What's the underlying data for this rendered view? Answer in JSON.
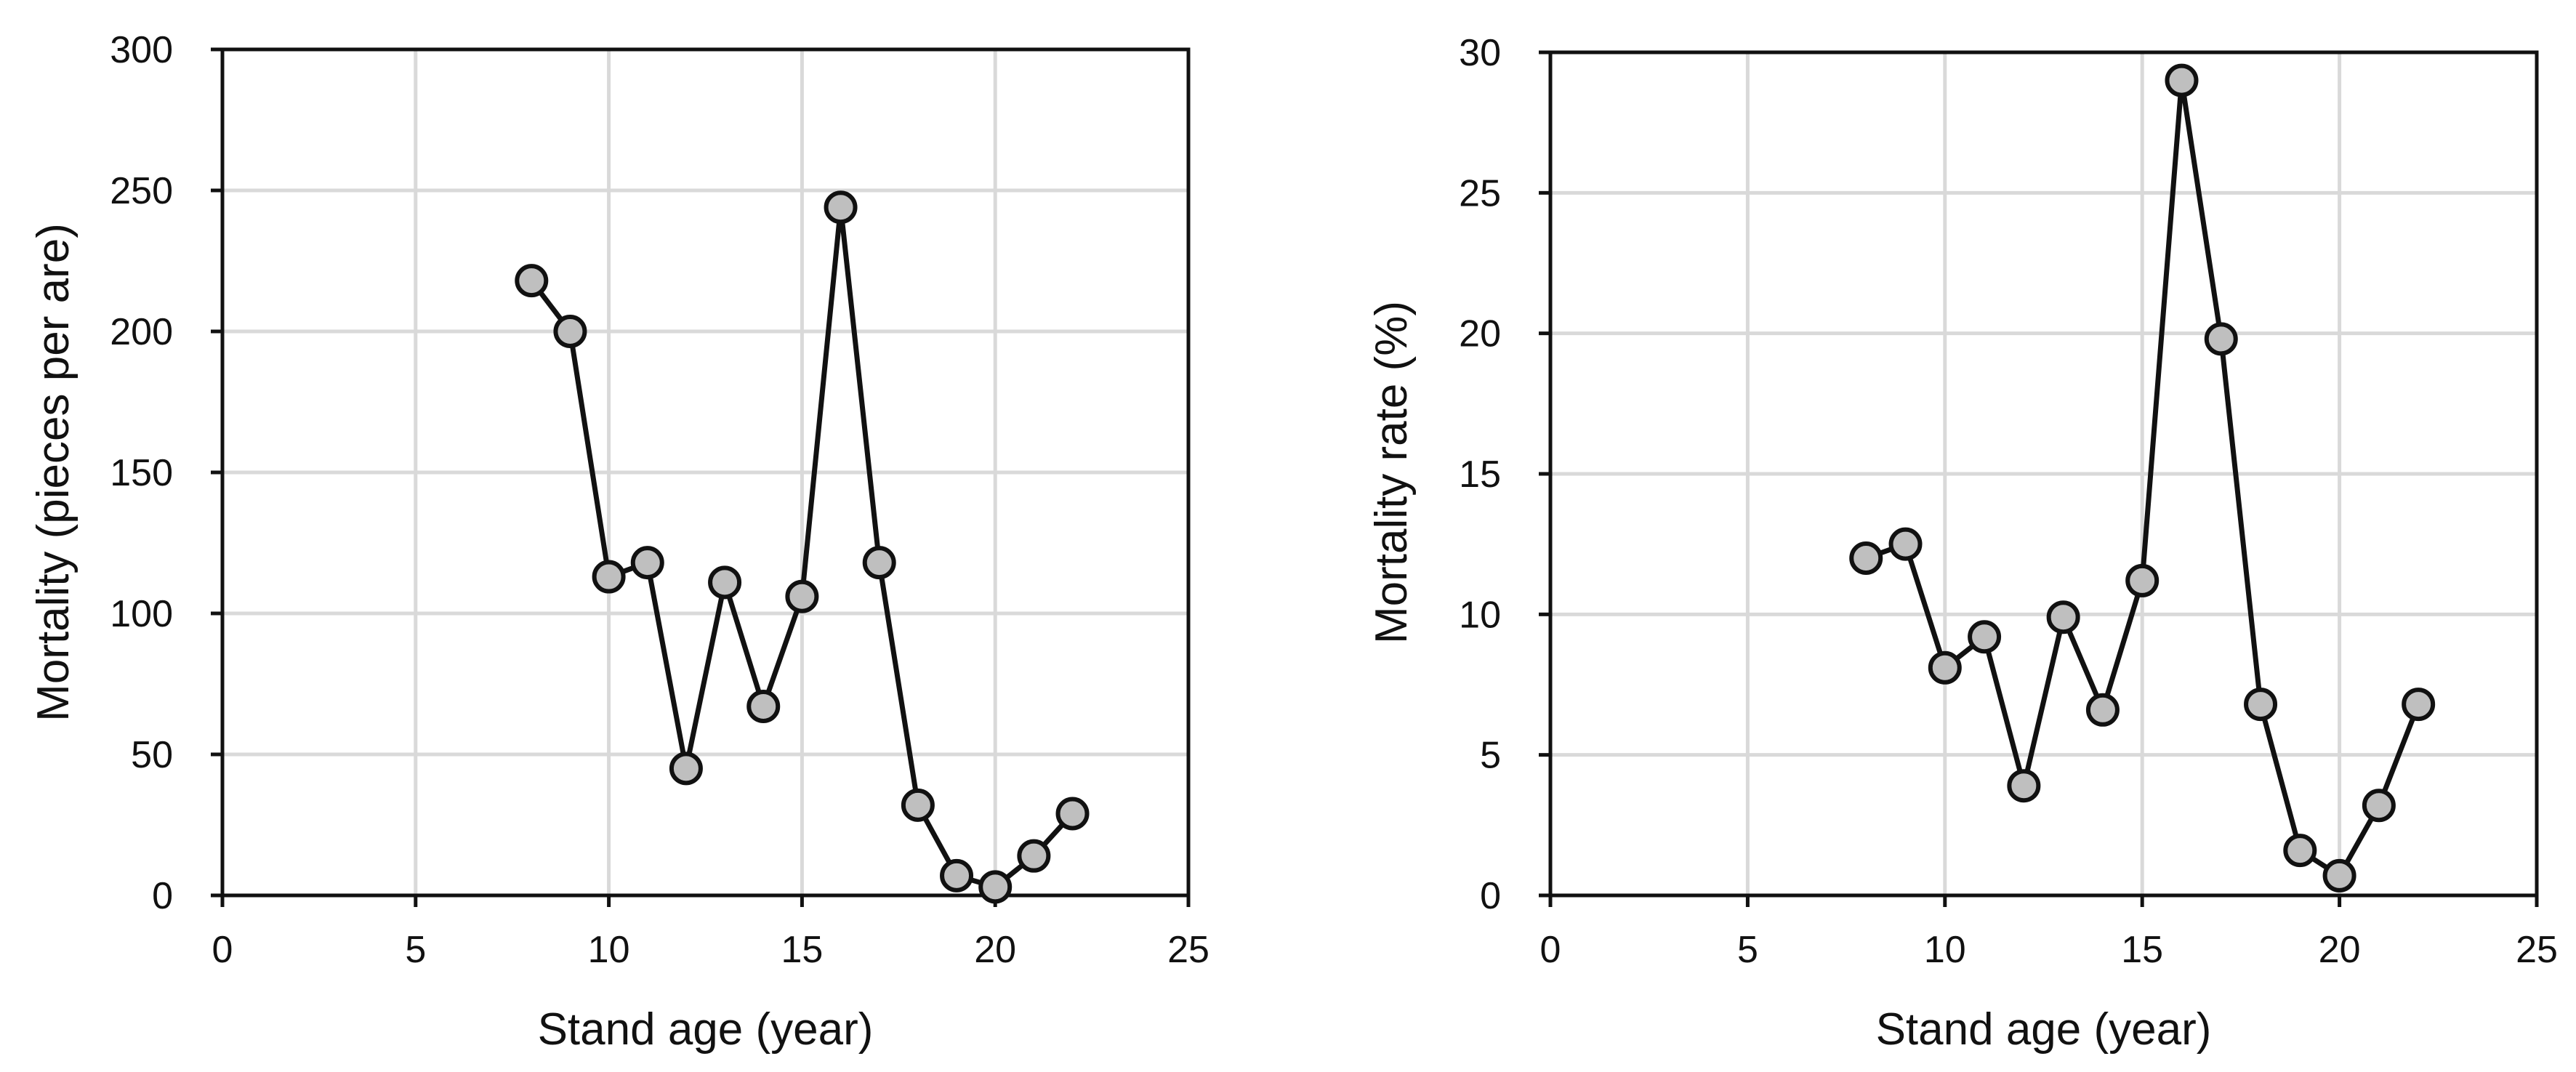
{
  "chart_data": [
    {
      "type": "line",
      "title": "",
      "xlabel": "Stand age (year)",
      "ylabel": "Mortality (pieces  per are)",
      "xlim": [
        0,
        25
      ],
      "ylim": [
        0,
        300
      ],
      "xticks": [
        0,
        5,
        10,
        15,
        20,
        25
      ],
      "yticks": [
        0,
        50,
        100,
        150,
        200,
        250,
        300
      ],
      "grid": true,
      "legend": "none",
      "marker": "circle",
      "line_color": "#111111",
      "marker_fill": "#bfbfbf",
      "series": [
        {
          "x": [
            8,
            9,
            10,
            11,
            12,
            13,
            14,
            15,
            16,
            17,
            18,
            19,
            20,
            21,
            22
          ],
          "y": [
            218,
            200,
            113,
            118,
            45,
            111,
            67,
            106,
            244,
            118,
            32,
            7,
            3,
            14,
            29
          ],
          "segments": [
            [
              8,
              9
            ],
            [
              9,
              22
            ]
          ]
        }
      ]
    },
    {
      "type": "line",
      "title": "",
      "xlabel": "Stand age (year)",
      "ylabel": "Mortality rate (%)",
      "xlim": [
        0,
        25
      ],
      "ylim": [
        0,
        30
      ],
      "xticks": [
        0,
        5,
        10,
        15,
        20,
        25
      ],
      "yticks": [
        0,
        5,
        10,
        15,
        20,
        25,
        30
      ],
      "grid": true,
      "legend": "none",
      "marker": "circle",
      "line_color": "#111111",
      "marker_fill": "#bfbfbf",
      "series": [
        {
          "x": [
            8,
            9,
            10,
            11,
            12,
            13,
            14,
            15,
            16,
            17,
            18,
            19,
            20,
            21,
            22
          ],
          "y": [
            12.0,
            12.5,
            8.1,
            9.2,
            3.9,
            9.9,
            6.6,
            11.2,
            29.0,
            19.8,
            6.8,
            1.6,
            0.7,
            3.2,
            6.8
          ],
          "segments": [
            [
              8,
              22
            ]
          ]
        }
      ]
    }
  ]
}
